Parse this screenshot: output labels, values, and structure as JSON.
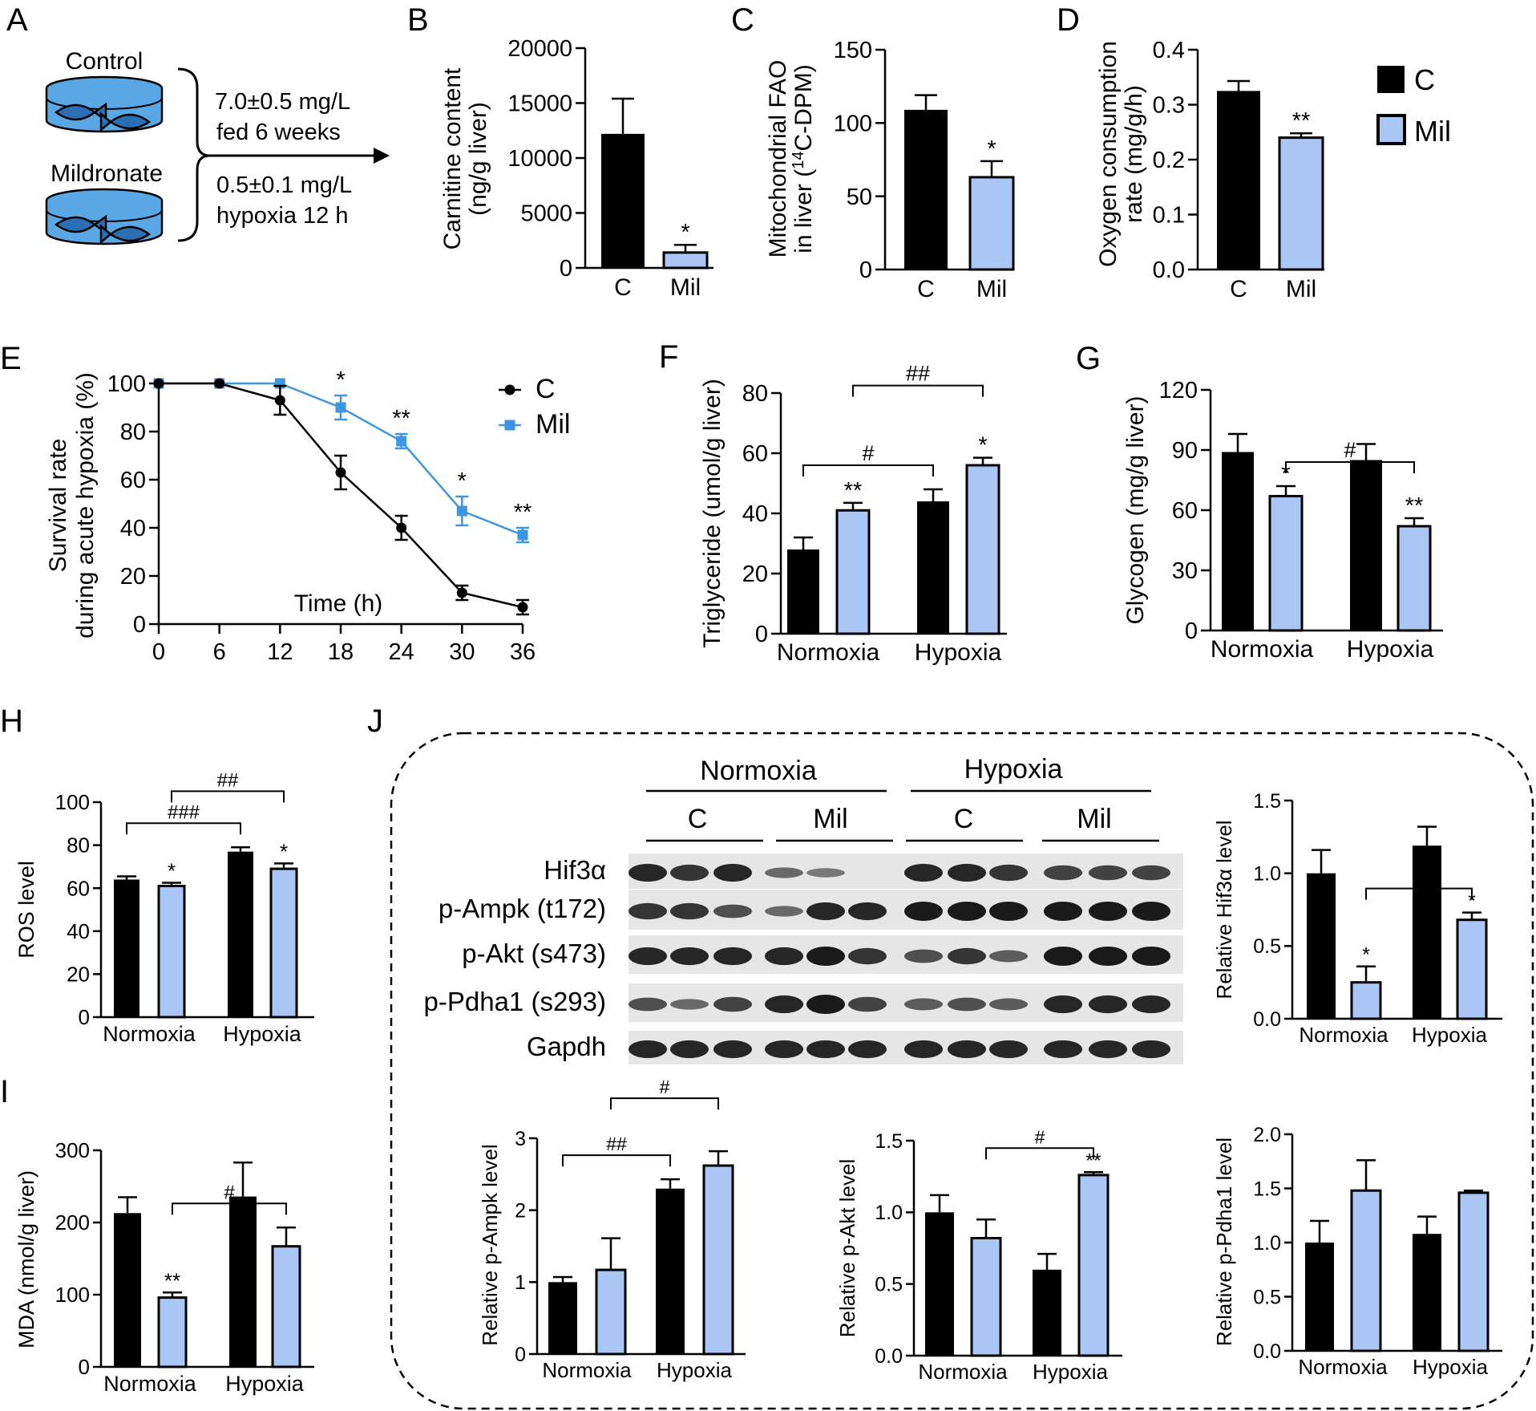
{
  "colors": {
    "control": "#000000",
    "mil": "#a9c6f5",
    "mil_line": "#3e96e0",
    "blot_bg": "#e6e6e6",
    "band": "#1a1a1a"
  },
  "panel_letters": [
    "A",
    "B",
    "C",
    "D",
    "E",
    "F",
    "G",
    "H",
    "I",
    "J"
  ],
  "schematic": {
    "control_label": "Control",
    "mildronate_label": "Mildronate",
    "line1": "7.0±0.5 mg/L",
    "line2": "fed 6 weeks",
    "line3": "0.5±0.1 mg/L",
    "line4": "hypoxia 12 h"
  },
  "legend": {
    "c": "C",
    "mil": "Mil"
  },
  "blot": {
    "header_groups": [
      "Normoxia",
      "Hypoxia"
    ],
    "sub_groups": [
      "C",
      "Mil",
      "C",
      "Mil"
    ],
    "rows": [
      "Hif3α",
      "p-Ampk (t172)",
      "p-Akt (s473)",
      "p-Pdha1 (s293)",
      "Gapdh"
    ],
    "intensities": [
      [
        0.9,
        0.8,
        0.9,
        0.4,
        0.3,
        0.0,
        0.9,
        0.9,
        0.8,
        0.7,
        0.7,
        0.7
      ],
      [
        0.8,
        0.8,
        0.6,
        0.4,
        0.9,
        0.9,
        1.0,
        1.0,
        1.0,
        1.0,
        1.0,
        1.0
      ],
      [
        0.9,
        0.9,
        0.9,
        0.9,
        1.0,
        0.8,
        0.6,
        0.8,
        0.5,
        1.0,
        1.0,
        1.0
      ],
      [
        0.6,
        0.4,
        0.7,
        0.9,
        1.0,
        0.7,
        0.5,
        0.6,
        0.5,
        0.9,
        0.9,
        0.9
      ],
      [
        0.9,
        0.9,
        0.9,
        0.9,
        0.9,
        0.9,
        0.9,
        0.9,
        0.9,
        0.9,
        0.9,
        0.9
      ]
    ]
  },
  "chart_data": [
    {
      "id": "B",
      "type": "bar",
      "ylabel": [
        "Carnitine content",
        "(ng/g liver)"
      ],
      "ylim": [
        0,
        20000
      ],
      "ticks": [
        0,
        5000,
        10000,
        15000,
        20000
      ],
      "tick_labels": [
        "0",
        "5000",
        "10000",
        "15000",
        "20000"
      ],
      "categories": [
        "C",
        "Mil"
      ],
      "values": [
        12200,
        1400
      ],
      "errors": [
        3200,
        700
      ],
      "marks": [
        "",
        "*"
      ]
    },
    {
      "id": "C",
      "type": "bar",
      "ylabel": [
        "Mitochondrial FAO",
        "in liver (14C-DPM)"
      ],
      "ylim": [
        0,
        150
      ],
      "ticks": [
        0,
        50,
        100,
        150
      ],
      "tick_labels": [
        "0",
        "50",
        "100",
        "150"
      ],
      "categories": [
        "C",
        "Mil"
      ],
      "values": [
        109,
        63
      ],
      "errors": [
        10,
        11
      ],
      "marks": [
        "",
        "*"
      ]
    },
    {
      "id": "D",
      "type": "bar",
      "ylabel": [
        "Oxygen consumption",
        "rate (mg/g/h)"
      ],
      "ylim": [
        0,
        0.4
      ],
      "ticks": [
        0,
        0.1,
        0.2,
        0.3,
        0.4
      ],
      "tick_labels": [
        "0.0",
        "0.1",
        "0.2",
        "0.3",
        "0.4"
      ],
      "categories": [
        "C",
        "Mil"
      ],
      "values": [
        0.325,
        0.24
      ],
      "errors": [
        0.018,
        0.008
      ],
      "marks": [
        "",
        "**"
      ]
    },
    {
      "id": "E",
      "type": "line",
      "ylabel": [
        "Survival rate",
        "during acute hypoxia (%)"
      ],
      "xlabel": "Time (h)",
      "xlim": [
        0,
        36
      ],
      "ylim": [
        0,
        100
      ],
      "xticks": [
        0,
        6,
        12,
        18,
        24,
        30,
        36
      ],
      "xtick_labels": [
        "0",
        "6",
        "12",
        "18",
        "24",
        "30",
        "36"
      ],
      "yticks": [
        0,
        20,
        40,
        60,
        80,
        100
      ],
      "ytick_labels": [
        "0",
        "20",
        "40",
        "60",
        "80",
        "100"
      ],
      "series": [
        {
          "name": "C",
          "x": [
            0,
            6,
            12,
            18,
            24,
            30,
            36
          ],
          "y": [
            100,
            100,
            93,
            63,
            40,
            13,
            7
          ],
          "err": [
            0,
            0,
            6,
            7,
            5,
            3,
            3
          ]
        },
        {
          "name": "Mil",
          "x": [
            0,
            6,
            12,
            18,
            24,
            30,
            36
          ],
          "y": [
            100,
            100,
            100,
            90,
            76,
            47,
            37
          ],
          "err": [
            0,
            0,
            0,
            5,
            3,
            6,
            3
          ]
        }
      ],
      "marks": [
        {
          "x": 18,
          "text": "*"
        },
        {
          "x": 24,
          "text": "**"
        },
        {
          "x": 30,
          "text": "*"
        },
        {
          "x": 36,
          "text": "**"
        }
      ]
    },
    {
      "id": "F",
      "type": "bar",
      "ylabel": [
        "Triglyceride (umol/g liver)"
      ],
      "ylim": [
        0,
        80
      ],
      "ticks": [
        0,
        20,
        40,
        60,
        80
      ],
      "tick_labels": [
        "0",
        "20",
        "40",
        "60",
        "80"
      ],
      "categories": [
        "Normoxia",
        "Hypoxia"
      ],
      "series": [
        {
          "name": "C",
          "values": [
            28,
            44
          ],
          "errors": [
            4,
            4
          ]
        },
        {
          "name": "Mil",
          "values": [
            41,
            56
          ],
          "errors": [
            2.5,
            2.5
          ]
        }
      ],
      "marks": [
        [
          "",
          "**"
        ],
        [
          "",
          "*"
        ]
      ],
      "brackets": [
        {
          "from": [
            0,
            0
          ],
          "to": [
            1,
            0
          ],
          "text": "#"
        },
        {
          "from": [
            0,
            1
          ],
          "to": [
            1,
            1
          ],
          "text": "##"
        }
      ]
    },
    {
      "id": "G",
      "type": "bar",
      "ylabel": [
        "Glycogen (mg/g liver)"
      ],
      "ylim": [
        0,
        120
      ],
      "ticks": [
        0,
        30,
        60,
        90,
        120
      ],
      "tick_labels": [
        "0",
        "30",
        "60",
        "90",
        "120"
      ],
      "categories": [
        "Normoxia",
        "Hypoxia"
      ],
      "series": [
        {
          "name": "C",
          "values": [
            89,
            85
          ],
          "errors": [
            9,
            8
          ]
        },
        {
          "name": "Mil",
          "values": [
            67,
            52
          ],
          "errors": [
            5,
            4
          ]
        }
      ],
      "marks": [
        [
          "",
          "*"
        ],
        [
          "",
          "**"
        ]
      ],
      "brackets": [
        {
          "from": [
            0,
            1
          ],
          "to": [
            1,
            1
          ],
          "text": "#"
        }
      ]
    },
    {
      "id": "H",
      "type": "bar",
      "ylabel": [
        "ROS level"
      ],
      "ylim": [
        0,
        100
      ],
      "ticks": [
        0,
        20,
        40,
        60,
        80,
        100
      ],
      "tick_labels": [
        "0",
        "20",
        "40",
        "60",
        "80",
        "100"
      ],
      "categories": [
        "Normoxia",
        "Hypoxia"
      ],
      "series": [
        {
          "name": "C",
          "values": [
            64,
            77
          ],
          "errors": [
            1.5,
            2
          ]
        },
        {
          "name": "Mil",
          "values": [
            61,
            69
          ],
          "errors": [
            1.5,
            2.5
          ]
        }
      ],
      "marks": [
        [
          "",
          "*"
        ],
        [
          "",
          "*"
        ]
      ],
      "brackets": [
        {
          "from": [
            0,
            0
          ],
          "to": [
            1,
            0
          ],
          "text": "###"
        },
        {
          "from": [
            0,
            1
          ],
          "to": [
            1,
            1
          ],
          "text": "##"
        }
      ]
    },
    {
      "id": "I",
      "type": "bar",
      "ylabel": [
        "MDA (nmol/g liver)"
      ],
      "ylim": [
        0,
        300
      ],
      "ticks": [
        0,
        100,
        200,
        300
      ],
      "tick_labels": [
        "0",
        "100",
        "200",
        "300"
      ],
      "categories": [
        "Normoxia",
        "Hypoxia"
      ],
      "series": [
        {
          "name": "C",
          "values": [
            213,
            236
          ],
          "errors": [
            22,
            47
          ]
        },
        {
          "name": "Mil",
          "values": [
            96,
            167
          ],
          "errors": [
            7,
            26
          ]
        }
      ],
      "marks": [
        [
          "",
          "**"
        ],
        [
          "",
          ""
        ]
      ],
      "brackets": [
        {
          "from": [
            0,
            1
          ],
          "to": [
            1,
            1
          ],
          "text": "#"
        }
      ]
    },
    {
      "id": "J1",
      "type": "bar",
      "ylabel": [
        "Relative Hif3α level"
      ],
      "ylim": [
        0,
        1.5
      ],
      "ticks": [
        0,
        0.5,
        1.0,
        1.5
      ],
      "tick_labels": [
        "0.0",
        "0.5",
        "1.0",
        "1.5"
      ],
      "categories": [
        "Normoxia",
        "Hypoxia"
      ],
      "series": [
        {
          "name": "C",
          "values": [
            1.0,
            1.19
          ],
          "errors": [
            0.16,
            0.13
          ]
        },
        {
          "name": "Mil",
          "values": [
            0.25,
            0.68
          ],
          "errors": [
            0.11,
            0.05
          ]
        }
      ],
      "marks": [
        [
          "",
          "*"
        ],
        [
          "",
          "*"
        ]
      ],
      "brackets": [
        {
          "from": [
            0,
            1
          ],
          "to": [
            1,
            1
          ],
          "text": "#"
        }
      ]
    },
    {
      "id": "J2",
      "type": "bar",
      "ylabel": [
        "Relative p-Ampk level"
      ],
      "ylim": [
        0,
        3
      ],
      "ticks": [
        0,
        1,
        2,
        3
      ],
      "tick_labels": [
        "0",
        "1",
        "2",
        "3"
      ],
      "categories": [
        "Normoxia",
        "Hypoxia"
      ],
      "series": [
        {
          "name": "C",
          "values": [
            1.0,
            2.3
          ],
          "errors": [
            0.07,
            0.13
          ]
        },
        {
          "name": "Mil",
          "values": [
            1.17,
            2.62
          ],
          "errors": [
            0.44,
            0.2
          ]
        }
      ],
      "marks": [
        [
          "",
          ""
        ],
        [
          "",
          ""
        ]
      ],
      "brackets": [
        {
          "from": [
            0,
            0
          ],
          "to": [
            1,
            0
          ],
          "text": "##"
        },
        {
          "from": [
            0,
            1
          ],
          "to": [
            1,
            1
          ],
          "text": "#"
        }
      ]
    },
    {
      "id": "J3",
      "type": "bar",
      "ylabel": [
        "Relative p-Akt level"
      ],
      "ylim": [
        0,
        1.5
      ],
      "ticks": [
        0,
        0.5,
        1.0,
        1.5
      ],
      "tick_labels": [
        "0.0",
        "0.5",
        "1.0",
        "1.5"
      ],
      "categories": [
        "Normoxia",
        "Hypoxia"
      ],
      "series": [
        {
          "name": "C",
          "values": [
            1.0,
            0.6
          ],
          "errors": [
            0.12,
            0.11
          ]
        },
        {
          "name": "Mil",
          "values": [
            0.82,
            1.26
          ],
          "errors": [
            0.13,
            0.02
          ]
        }
      ],
      "marks": [
        [
          "",
          ""
        ],
        [
          "",
          "**"
        ]
      ],
      "brackets": [
        {
          "from": [
            0,
            1
          ],
          "to": [
            1,
            1
          ],
          "text": "#"
        }
      ]
    },
    {
      "id": "J4",
      "type": "bar",
      "ylabel": [
        "Relative p-Pdha1 level"
      ],
      "ylim": [
        0,
        2
      ],
      "ticks": [
        0,
        0.5,
        1.0,
        1.5,
        2.0
      ],
      "tick_labels": [
        "0.0",
        "0.5",
        "1.0",
        "1.5",
        "2.0"
      ],
      "categories": [
        "Normoxia",
        "Hypoxia"
      ],
      "series": [
        {
          "name": "C",
          "values": [
            1.0,
            1.08
          ],
          "errors": [
            0.2,
            0.16
          ]
        },
        {
          "name": "Mil",
          "values": [
            1.48,
            1.46
          ],
          "errors": [
            0.28,
            0.02
          ]
        }
      ],
      "marks": [
        [
          "",
          ""
        ],
        [
          "",
          ""
        ]
      ],
      "brackets": []
    }
  ]
}
